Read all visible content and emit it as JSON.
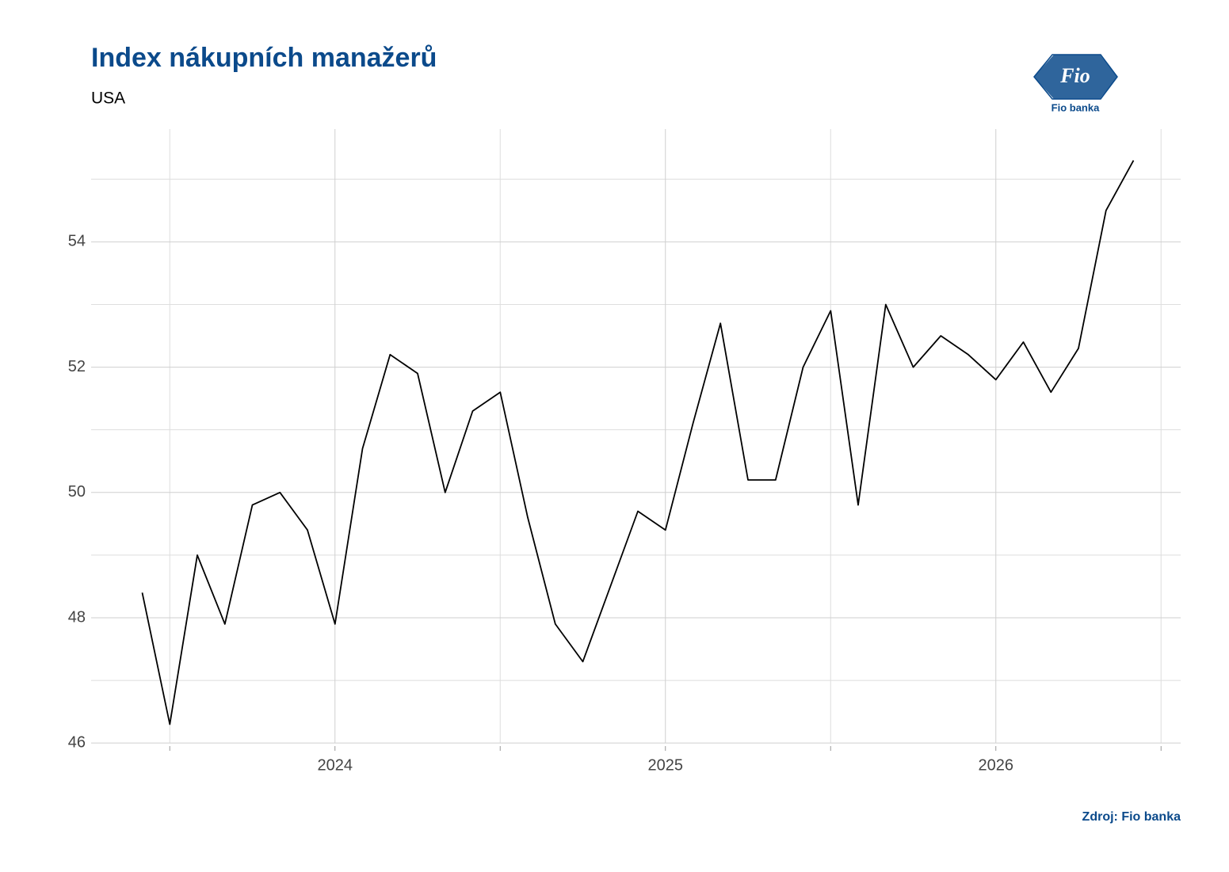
{
  "chart_data": {
    "type": "line",
    "title": "Index nákupních manažerů",
    "subtitle": "USA",
    "source": "Zdroj: Fio banka",
    "x": [
      "2023-06",
      "2023-07",
      "2023-08",
      "2023-09",
      "2023-10",
      "2023-11",
      "2023-12",
      "2024-01",
      "2024-02",
      "2024-03",
      "2024-04",
      "2024-05",
      "2024-06",
      "2024-07",
      "2024-08",
      "2024-09",
      "2024-10",
      "2024-11",
      "2024-12",
      "2025-01",
      "2025-02",
      "2025-03",
      "2025-04",
      "2025-05",
      "2025-06",
      "2025-07",
      "2025-08",
      "2025-09",
      "2025-10",
      "2025-11",
      "2025-12",
      "2026-01",
      "2026-02",
      "2026-03",
      "2026-04",
      "2026-05",
      "2026-06"
    ],
    "series": [
      {
        "name": "USA",
        "color": "#000000",
        "values": [
          48.4,
          46.3,
          49.0,
          47.9,
          49.8,
          50.0,
          49.4,
          47.9,
          50.7,
          52.2,
          51.9,
          50.0,
          51.3,
          51.6,
          49.6,
          47.9,
          47.3,
          48.5,
          49.7,
          49.4,
          51.1,
          52.7,
          50.2,
          50.2,
          52.0,
          52.9,
          49.8,
          53.0,
          52.0,
          52.5,
          52.2,
          51.8,
          52.4,
          51.6,
          52.3,
          54.5,
          55.3
        ]
      }
    ],
    "xlim": [
      "2023-04",
      "2026-08"
    ],
    "xticks": [
      {
        "value": "2024-01",
        "label": "2024"
      },
      {
        "value": "2025-01",
        "label": "2025"
      },
      {
        "value": "2026-01",
        "label": "2026"
      }
    ],
    "xminor_ticks": [
      "2023-07",
      "2024-07",
      "2025-07",
      "2026-07"
    ],
    "ylim": [
      45.8,
      55.8
    ],
    "yticks": [
      46,
      48,
      50,
      52,
      54
    ],
    "yminor_ticks": [
      47,
      49,
      51,
      53,
      55
    ],
    "grid": true
  },
  "logo": {
    "mark": "Fio",
    "name": "Fio banka"
  }
}
